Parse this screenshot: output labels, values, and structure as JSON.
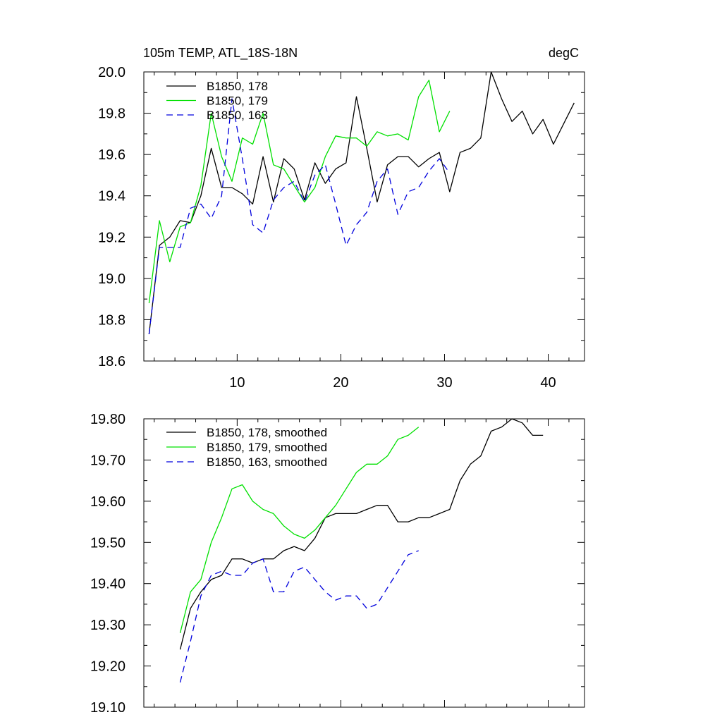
{
  "chart_data": [
    {
      "type": "line",
      "title_left": "105m TEMP, ATL_18S-18N",
      "title_right": "degC",
      "xlim": [
        1,
        43.5
      ],
      "ylim": [
        18.6,
        20.0
      ],
      "x_ticks": [
        10,
        20,
        30,
        40
      ],
      "x_tick_labels": [
        "10",
        "20",
        "30",
        "40"
      ],
      "y_ticks": [
        18.6,
        18.8,
        19.0,
        19.2,
        19.4,
        19.6,
        19.8,
        20.0
      ],
      "y_tick_labels": [
        "18.6",
        "18.8",
        "19.0",
        "19.2",
        "19.4",
        "19.6",
        "19.8",
        "20.0"
      ],
      "legend_position": "top-left",
      "series": [
        {
          "name": "B1850, 178",
          "color": "#000000",
          "dash": "solid",
          "x": [
            1.5,
            2.5,
            3.5,
            4.5,
            5.5,
            6.5,
            7.5,
            8.5,
            9.5,
            10.5,
            11.5,
            12.5,
            13.5,
            14.5,
            15.5,
            16.5,
            17.5,
            18.5,
            19.5,
            20.5,
            21.5,
            22.5,
            23.5,
            24.5,
            25.5,
            26.5,
            27.5,
            28.5,
            29.5,
            30.5,
            31.5,
            32.5,
            33.5,
            34.5,
            35.5,
            36.5,
            37.5,
            38.5,
            39.5,
            40.5,
            41.5,
            42.5
          ],
          "y": [
            18.73,
            19.16,
            19.2,
            19.28,
            19.27,
            19.4,
            19.63,
            19.44,
            19.44,
            19.41,
            19.36,
            19.59,
            19.37,
            19.58,
            19.53,
            19.38,
            19.56,
            19.46,
            19.53,
            19.56,
            19.88,
            19.63,
            19.37,
            19.55,
            19.59,
            19.59,
            19.54,
            19.58,
            19.61,
            19.42,
            19.61,
            19.63,
            19.68,
            20.0,
            19.87,
            19.76,
            19.81,
            19.7,
            19.77,
            19.65,
            19.75,
            19.85
          ]
        },
        {
          "name": "B1850, 179",
          "color": "#00e000",
          "dash": "solid",
          "x": [
            1.5,
            2.5,
            3.5,
            4.5,
            5.5,
            6.5,
            7.5,
            8.5,
            9.5,
            10.5,
            11.5,
            12.5,
            13.5,
            14.5,
            15.5,
            16.5,
            17.5,
            18.5,
            19.5,
            20.5,
            21.5,
            22.5,
            23.5,
            24.5,
            25.5,
            26.5,
            27.5,
            28.5,
            29.5,
            30.5
          ],
          "y": [
            18.88,
            19.28,
            19.08,
            19.25,
            19.27,
            19.45,
            19.8,
            19.59,
            19.47,
            19.68,
            19.65,
            19.8,
            19.55,
            19.53,
            19.45,
            19.37,
            19.44,
            19.59,
            19.69,
            19.68,
            19.68,
            19.64,
            19.71,
            19.69,
            19.7,
            19.67,
            19.88,
            19.96,
            19.71,
            19.81
          ]
        },
        {
          "name": "B1850, 163",
          "color": "#0000dd",
          "dash": "dashed",
          "x": [
            1.5,
            2.5,
            3.5,
            4.5,
            5.5,
            6.5,
            7.5,
            8.5,
            9.5,
            10.5,
            11.5,
            12.5,
            13.5,
            14.5,
            15.5,
            16.5,
            17.5,
            18.5,
            19.5,
            20.5,
            21.5,
            22.5,
            23.5,
            24.5,
            25.5,
            26.5,
            27.5,
            28.5,
            29.5,
            30.5
          ],
          "y": [
            18.73,
            19.15,
            19.15,
            19.15,
            19.34,
            19.36,
            19.29,
            19.4,
            19.87,
            19.58,
            19.26,
            19.22,
            19.38,
            19.44,
            19.47,
            19.37,
            19.5,
            19.55,
            19.36,
            19.16,
            19.26,
            19.32,
            19.47,
            19.53,
            19.31,
            19.42,
            19.44,
            19.52,
            19.58,
            19.51
          ]
        }
      ]
    },
    {
      "type": "line",
      "xlim": [
        1,
        43.5
      ],
      "ylim": [
        19.1,
        19.8
      ],
      "x_ticks": [
        10,
        20,
        30,
        40
      ],
      "y_ticks": [
        19.1,
        19.2,
        19.3,
        19.4,
        19.5,
        19.6,
        19.7,
        19.8
      ],
      "y_tick_labels": [
        "19.10",
        "19.20",
        "19.30",
        "19.40",
        "19.50",
        "19.60",
        "19.70",
        "19.80"
      ],
      "legend_position": "top-left",
      "series": [
        {
          "name": "B1850, 178, smoothed",
          "color": "#000000",
          "dash": "solid",
          "x": [
            4.5,
            5.5,
            6.5,
            7.5,
            8.5,
            9.5,
            10.5,
            11.5,
            12.5,
            13.5,
            14.5,
            15.5,
            16.5,
            17.5,
            18.5,
            19.5,
            20.5,
            21.5,
            22.5,
            23.5,
            24.5,
            25.5,
            26.5,
            27.5,
            28.5,
            29.5,
            30.5,
            31.5,
            32.5,
            33.5,
            34.5,
            35.5,
            36.5,
            37.5,
            38.5,
            39.5
          ],
          "y": [
            19.24,
            19.34,
            19.38,
            19.41,
            19.42,
            19.46,
            19.46,
            19.45,
            19.46,
            19.46,
            19.48,
            19.49,
            19.48,
            19.51,
            19.56,
            19.57,
            19.57,
            19.57,
            19.58,
            19.59,
            19.59,
            19.55,
            19.55,
            19.56,
            19.56,
            19.57,
            19.58,
            19.65,
            19.69,
            19.71,
            19.77,
            19.78,
            19.8,
            19.79,
            19.76,
            19.76
          ]
        },
        {
          "name": "B1850, 179, smoothed",
          "color": "#00e000",
          "dash": "solid",
          "x": [
            4.5,
            5.5,
            6.5,
            7.5,
            8.5,
            9.5,
            10.5,
            11.5,
            12.5,
            13.5,
            14.5,
            15.5,
            16.5,
            17.5,
            18.5,
            19.5,
            20.5,
            21.5,
            22.5,
            23.5,
            24.5,
            25.5,
            26.5,
            27.5
          ],
          "y": [
            19.28,
            19.38,
            19.41,
            19.5,
            19.56,
            19.63,
            19.64,
            19.6,
            19.58,
            19.57,
            19.54,
            19.52,
            19.51,
            19.53,
            19.56,
            19.59,
            19.63,
            19.67,
            19.69,
            19.69,
            19.71,
            19.75,
            19.76,
            19.78
          ]
        },
        {
          "name": "B1850, 163, smoothed",
          "color": "#0000dd",
          "dash": "dashed",
          "x": [
            4.5,
            5.5,
            6.5,
            7.5,
            8.5,
            9.5,
            10.5,
            11.5,
            12.5,
            13.5,
            14.5,
            15.5,
            16.5,
            17.5,
            18.5,
            19.5,
            20.5,
            21.5,
            22.5,
            23.5,
            24.5,
            25.5,
            26.5,
            27.5
          ],
          "y": [
            19.16,
            19.26,
            19.37,
            19.42,
            19.43,
            19.42,
            19.42,
            19.45,
            19.46,
            19.38,
            19.38,
            19.43,
            19.44,
            19.41,
            19.38,
            19.36,
            19.37,
            19.37,
            19.34,
            19.35,
            19.39,
            19.43,
            19.47,
            19.48
          ]
        }
      ]
    }
  ]
}
